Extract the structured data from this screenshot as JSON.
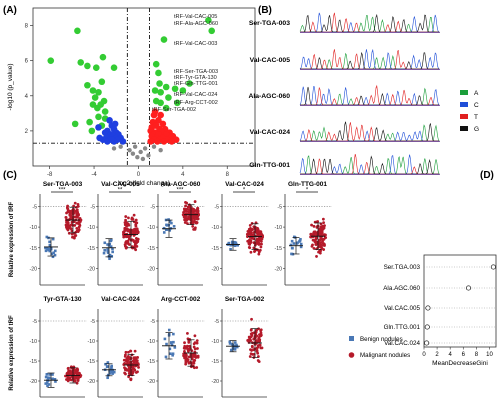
{
  "panels": {
    "a": "(A)",
    "b": "(B)",
    "c": "(C)",
    "d": "(D)"
  },
  "colors": {
    "up": "#ff1f1f",
    "down": "#1f3fe0",
    "sig": "#33cc33",
    "benign": "#4a78b5",
    "malignant": "#b51a2a",
    "chrom_A": "#1b9e3a",
    "chrom_C": "#1f4fd8",
    "chrom_T": "#e02020",
    "chrom_G": "#111111"
  },
  "legend_b": [
    "A",
    "C",
    "T",
    "G"
  ],
  "legend_c": {
    "benign": "Benign nodules",
    "malignant": "Malignant nodules"
  },
  "chart_data": [
    {
      "type": "scatter",
      "panel": "A",
      "xlabel": "log2 (fold change)",
      "ylabel": "-log10 (p_value)",
      "xticks": [
        "-8",
        "-4",
        "0",
        "4",
        "8"
      ],
      "yticks": [
        "2",
        "4",
        "6",
        "8"
      ],
      "xlim": [
        -9.5,
        10.5
      ],
      "ylim": [
        0,
        9
      ],
      "thresholds": {
        "x": [
          -1,
          1
        ],
        "y": 1.3
      },
      "labels": [
        "tRF-Val-CAC-005",
        "tRF-Ala-AGC-060",
        "tRF-Val-CAC-003",
        "tRF-Ser-TGA-003",
        "tRF-Gln-TTG-001",
        "tRF-Val-CAC-024",
        "tRF-Arg-CCT-002",
        "tRF-Ser-TGA-002",
        "tRF-Tyr-GTA-130"
      ],
      "series": [
        {
          "group": "sig",
          "points": [
            [
              6.3,
              8.3
            ],
            [
              6.6,
              7.7
            ],
            [
              2.3,
              7.2
            ],
            [
              -5.5,
              7.7
            ],
            [
              -7.9,
              6.0
            ],
            [
              -3.2,
              6.2
            ],
            [
              -5.2,
              5.9
            ],
            [
              -4.6,
              5.7
            ],
            [
              -3.8,
              5.6
            ],
            [
              -2.2,
              5.6
            ],
            [
              -3.3,
              4.8
            ],
            [
              -4.6,
              4.6
            ],
            [
              -4.1,
              4.3
            ],
            [
              -3.6,
              4.2
            ],
            [
              -3.9,
              3.9
            ],
            [
              -3.1,
              3.7
            ],
            [
              -3.4,
              3.5
            ],
            [
              -4.1,
              3.5
            ],
            [
              -3.7,
              3.3
            ],
            [
              -3.0,
              3.1
            ],
            [
              -3.6,
              2.8
            ],
            [
              -4.4,
              2.5
            ],
            [
              -3.3,
              2.3
            ],
            [
              -4.2,
              2.0
            ],
            [
              -5.7,
              2.4
            ],
            [
              -3.0,
              2.7
            ],
            [
              1.6,
              5.8
            ],
            [
              1.8,
              5.3
            ],
            [
              1.9,
              4.7
            ],
            [
              2.0,
              4.2
            ],
            [
              2.5,
              4.5
            ],
            [
              2.7,
              3.9
            ],
            [
              4.6,
              4.7
            ],
            [
              4.0,
              4.3
            ],
            [
              3.5,
              3.6
            ],
            [
              2.5,
              3.3
            ],
            [
              1.6,
              3.7
            ],
            [
              2.0,
              3.6
            ],
            [
              1.5,
              4.3
            ],
            [
              3.3,
              4.4
            ]
          ]
        },
        {
          "group": "down",
          "points": [
            [
              -2.6,
              2.6
            ],
            [
              -2.4,
              2.3
            ],
            [
              -2.2,
              2.1
            ],
            [
              -2.8,
              2.0
            ],
            [
              -2.0,
              1.9
            ],
            [
              -3.0,
              1.9
            ],
            [
              -2.5,
              1.8
            ],
            [
              -1.8,
              1.8
            ],
            [
              -2.3,
              1.7
            ],
            [
              -2.9,
              1.6
            ],
            [
              -2.0,
              1.6
            ],
            [
              -1.6,
              1.6
            ],
            [
              -2.6,
              1.5
            ],
            [
              -3.2,
              1.5
            ],
            [
              -1.9,
              1.5
            ],
            [
              -2.2,
              1.4
            ],
            [
              -1.4,
              1.4
            ],
            [
              -2.8,
              1.4
            ],
            [
              -3.5,
              1.6
            ],
            [
              -3.6,
              2.2
            ],
            [
              -2.1,
              2.4
            ],
            [
              -2.4,
              1.5
            ]
          ]
        },
        {
          "group": "up",
          "points": [
            [
              1.4,
              2.9
            ],
            [
              1.8,
              2.6
            ],
            [
              1.3,
              2.5
            ],
            [
              2.2,
              2.4
            ],
            [
              1.6,
              2.3
            ],
            [
              1.2,
              2.2
            ],
            [
              1.9,
              2.1
            ],
            [
              2.4,
              2.1
            ],
            [
              1.1,
              2.0
            ],
            [
              1.5,
              1.9
            ],
            [
              2.1,
              1.9
            ],
            [
              2.8,
              1.9
            ],
            [
              1.3,
              1.8
            ],
            [
              1.8,
              1.8
            ],
            [
              2.5,
              1.8
            ],
            [
              3.1,
              1.7
            ],
            [
              1.2,
              1.7
            ],
            [
              1.6,
              1.6
            ],
            [
              2.2,
              1.6
            ],
            [
              2.9,
              1.6
            ],
            [
              1.4,
              1.5
            ],
            [
              1.9,
              1.5
            ],
            [
              2.6,
              1.5
            ],
            [
              3.4,
              1.5
            ],
            [
              1.1,
              1.4
            ],
            [
              1.7,
              1.4
            ],
            [
              2.3,
              1.4
            ],
            [
              3.0,
              1.4
            ],
            [
              1.5,
              3.1
            ],
            [
              2.0,
              2.9
            ]
          ]
        },
        {
          "group": "ns",
          "points": [
            [
              -0.8,
              0.9
            ],
            [
              -0.5,
              0.7
            ],
            [
              -0.3,
              1.1
            ],
            [
              0.2,
              0.8
            ],
            [
              0.6,
              1.0
            ],
            [
              0.9,
              0.6
            ],
            [
              -1.6,
              1.1
            ],
            [
              -2.2,
              1.0
            ],
            [
              1.4,
              1.1
            ],
            [
              2.0,
              0.9
            ],
            [
              -0.1,
              0.5
            ],
            [
              0.4,
              0.4
            ]
          ]
        }
      ]
    },
    {
      "type": "chromatogram",
      "panel": "B",
      "traces": [
        "Ser-TGA-003",
        "Val-CAC-005",
        "Ala-AGC-060",
        "Val-CAC-024",
        "Gln-TTG-001"
      ]
    },
    {
      "type": "scatter",
      "panel": "C",
      "ylabel": "Relative expression of tRF",
      "yticks": [
        "-20",
        "-15",
        "-10",
        "-5"
      ],
      "ylim": [
        -24,
        -2
      ],
      "groups": [
        "Benign nodules",
        "Malignant nodules"
      ],
      "subplots": [
        {
          "title": "Ser-TGA-003",
          "sig": "***",
          "benign": {
            "mean": -14.8,
            "sd": 2.2,
            "n": 20
          },
          "malignant": {
            "mean": -8.3,
            "sd": 3.1,
            "n": 110
          }
        },
        {
          "title": "Val-CAC-005",
          "sig": "**",
          "benign": {
            "mean": -15.0,
            "sd": 2.2,
            "n": 20
          },
          "malignant": {
            "mean": -11.8,
            "sd": 3.2,
            "n": 110
          }
        },
        {
          "title": "Ala-AGC-060",
          "sig": "***",
          "benign": {
            "mean": -10.4,
            "sd": 2.1,
            "n": 14
          },
          "malignant": {
            "mean": -7.0,
            "sd": 2.4,
            "n": 110
          }
        },
        {
          "title": "Val-CAC-024",
          "sig": "*",
          "benign": {
            "mean": -14.2,
            "sd": 1.4,
            "n": 18
          },
          "malignant": {
            "mean": -12.3,
            "sd": 3.1,
            "n": 110
          }
        },
        {
          "title": "Gln-TTG-001",
          "sig": "*",
          "benign": {
            "mean": -14.5,
            "sd": 2.0,
            "n": 16
          },
          "malignant": {
            "mean": -12.2,
            "sd": 3.2,
            "n": 110
          }
        },
        {
          "title": "Tyr-GTA-130",
          "sig": "",
          "benign": {
            "mean": -19.8,
            "sd": 1.8,
            "n": 16
          },
          "malignant": {
            "mean": -18.6,
            "sd": 1.9,
            "n": 70
          }
        },
        {
          "title": "Val-CAC-024",
          "sig": "",
          "benign": {
            "mean": -17.2,
            "sd": 1.5,
            "n": 18
          },
          "malignant": {
            "mean": -16.0,
            "sd": 2.6,
            "n": 90
          }
        },
        {
          "title": "Arg-CCT-002",
          "sig": "",
          "benign": {
            "mean": -11.2,
            "sd": 3.3,
            "n": 16
          },
          "malignant": {
            "mean": -13.0,
            "sd": 3.3,
            "n": 80
          }
        },
        {
          "title": "Ser-TGA-002",
          "sig": "",
          "benign": {
            "mean": -11.3,
            "sd": 1.4,
            "n": 14
          },
          "malignant": {
            "mean": -10.5,
            "sd": 3.6,
            "n": 70
          }
        }
      ]
    },
    {
      "type": "dot",
      "panel": "D",
      "xlabel": "MeanDecreaseGini",
      "xticks": [
        "0",
        "2",
        "4",
        "6",
        "8",
        "10"
      ],
      "xlim": [
        0,
        11
      ],
      "categories": [
        "Ser.TGA.003",
        "Ala.AGC.060",
        "Val.CAC.005",
        "Gln.TTG.001",
        "Val.CAC.024"
      ],
      "values": [
        10.6,
        6.8,
        0.6,
        0.5,
        0.4
      ]
    }
  ]
}
